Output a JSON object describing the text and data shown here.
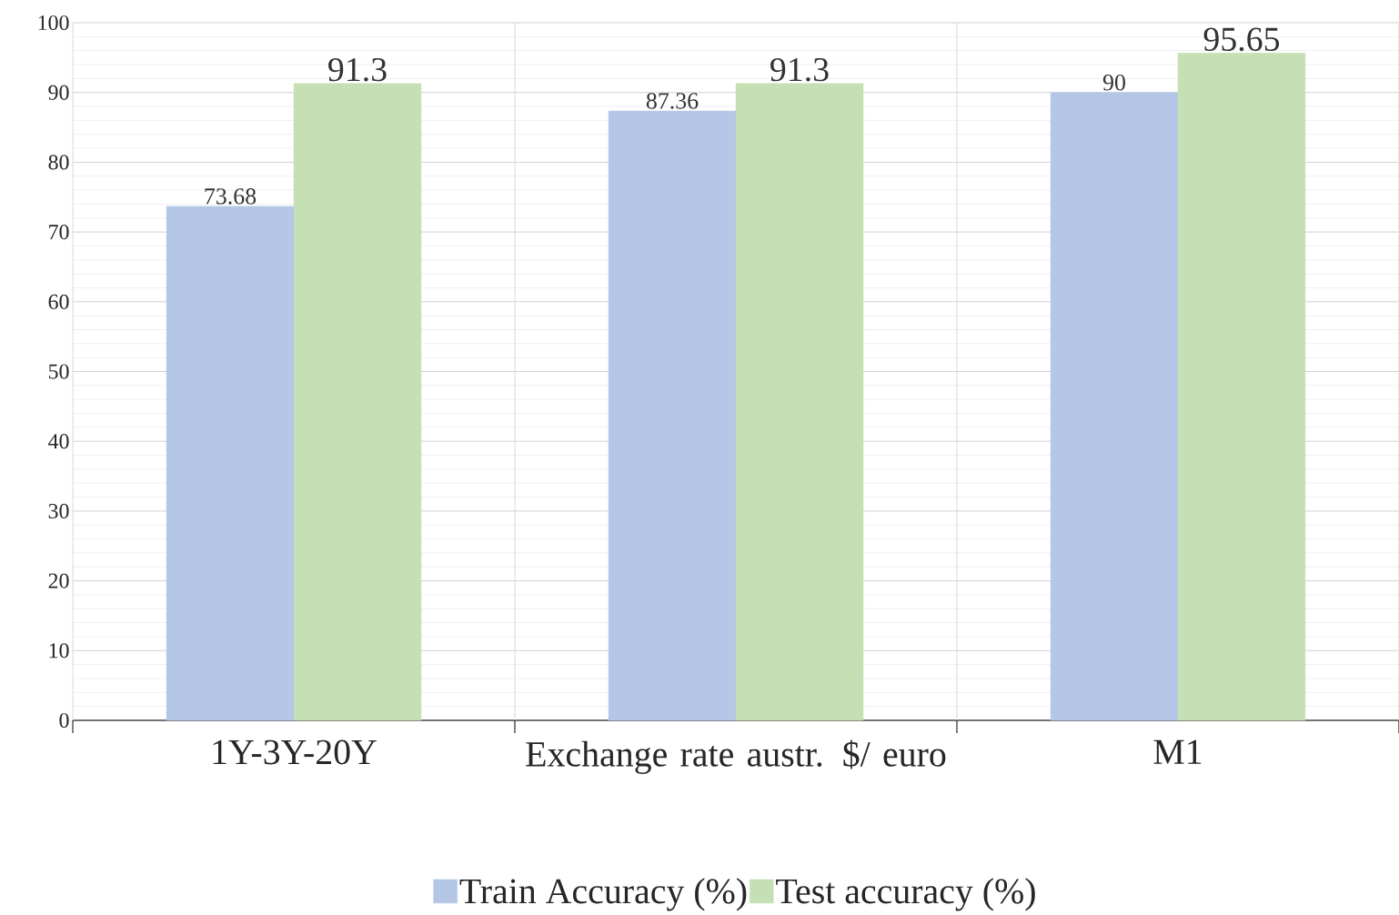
{
  "chart_data": {
    "type": "bar",
    "categories": [
      "1Y-3Y-20Y",
      "Exchange rate austr. $/ euro",
      "M1"
    ],
    "series": [
      {
        "name": "Train Accuracy (%)",
        "color": "#b4c7e7",
        "values": [
          73.68,
          87.36,
          90
        ]
      },
      {
        "name": "Test accuracy (%)",
        "color": "#c5e0b4",
        "values": [
          91.3,
          91.3,
          95.65
        ]
      }
    ],
    "ylim": [
      0,
      100
    ],
    "yticks": [
      0,
      10,
      20,
      30,
      40,
      50,
      60,
      70,
      80,
      90,
      100
    ],
    "grid": true,
    "legend": "bottom",
    "data_labels": true
  }
}
